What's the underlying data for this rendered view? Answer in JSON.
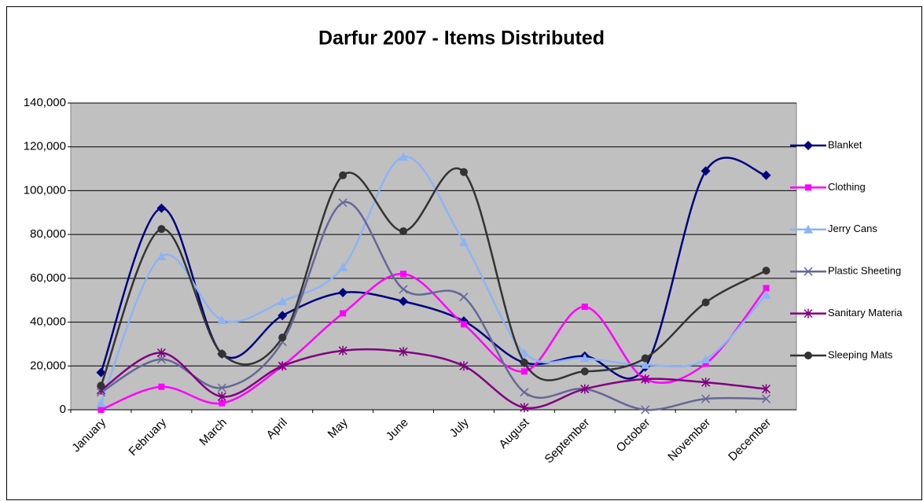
{
  "chart_data": {
    "type": "line",
    "title": "Darfur 2007 - Items Distributed",
    "categories": [
      "January",
      "February",
      "March",
      "April",
      "May",
      "June",
      "July",
      "August",
      "September",
      "October",
      "November",
      "December"
    ],
    "series": [
      {
        "name": "Blanket",
        "color": "#000080",
        "marker": "diamond",
        "values": [
          17000,
          92000,
          25500,
          43000,
          53500,
          49500,
          40500,
          21500,
          24500,
          19500,
          109000,
          107000
        ]
      },
      {
        "name": "Clothing",
        "color": "#ff00ff",
        "marker": "square",
        "values": [
          0,
          10500,
          3000,
          20000,
          44000,
          62000,
          39000,
          17500,
          47000,
          14000,
          21000,
          55500
        ]
      },
      {
        "name": "Jerry Cans",
        "color": "#8cb4f5",
        "marker": "triangle",
        "values": [
          3000,
          70000,
          41000,
          49500,
          65000,
          115500,
          76500,
          26000,
          23500,
          20500,
          23000,
          52500
        ]
      },
      {
        "name": "Plastic Sheeting",
        "color": "#666699",
        "marker": "x",
        "values": [
          8000,
          23000,
          10000,
          31000,
          94500,
          55000,
          51500,
          8000,
          9500,
          0,
          5000,
          5000
        ]
      },
      {
        "name": "Sanitary Materia",
        "color": "#800080",
        "marker": "star",
        "values": [
          9000,
          26000,
          6000,
          20000,
          27000,
          26500,
          20000,
          1000,
          9500,
          14000,
          12500,
          9500
        ]
      },
      {
        "name": "Sleeping Mats",
        "color": "#333333",
        "marker": "circle",
        "values": [
          11000,
          82500,
          25500,
          33000,
          107000,
          81500,
          108500,
          21500,
          17500,
          23500,
          49000,
          63500
        ]
      }
    ],
    "ylim": [
      0,
      140000
    ],
    "yticks": [
      0,
      {
        "value": 20000,
        "label": "20,000"
      },
      {
        "value": 40000,
        "label": "40,000"
      },
      {
        "value": 60000,
        "label": "60,000"
      },
      {
        "value": 80000,
        "label": "80,000"
      },
      {
        "value": 100000,
        "label": "100,000"
      },
      {
        "value": 120000,
        "label": "120,000"
      },
      {
        "value": 140000,
        "label": "140,000"
      }
    ],
    "grid": true,
    "legend": "right",
    "smooth": true
  }
}
